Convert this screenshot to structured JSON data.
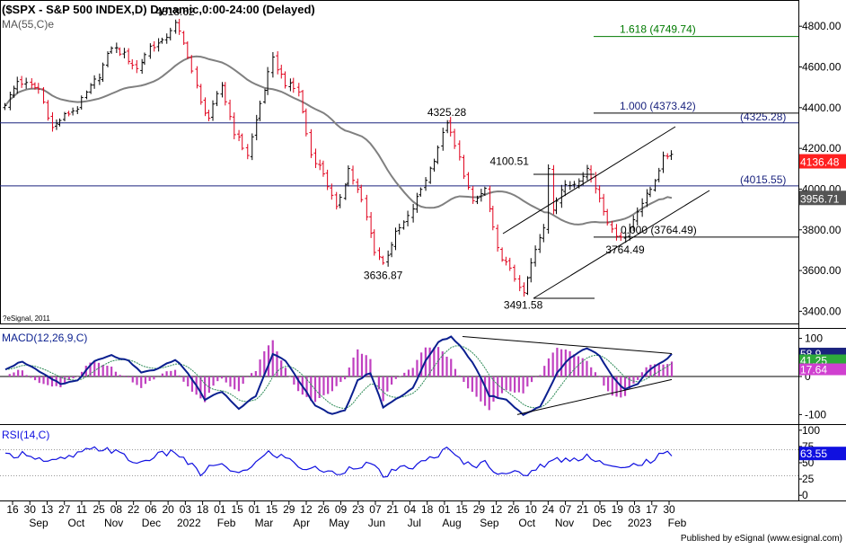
{
  "header": {
    "title": "($SPX - S&P 500 INDEX,D) Dynamic,0:00-24:00 (Delayed)",
    "ma_label": "MA(55,C)e",
    "copyright": "?eSignal, 2011",
    "footer": "Published by eSignal (www.esignal.com)"
  },
  "colors": {
    "up_bar": "#000000",
    "down_bar": "#e0001b",
    "ma": "#808080",
    "level_line": "#1a237e",
    "fib_161": "#007a00",
    "macd_line": "#0a1f8f",
    "signal_line": "#2e8b57",
    "histogram": "#c040c0",
    "rsi": "#1010e0",
    "price_tag": "#ff2020",
    "ma_tag": "#555555"
  },
  "chart_data": [
    {
      "type": "candlestick",
      "name": "price",
      "y_ticks": [
        "3400.00",
        "3600.00",
        "3800.00",
        "4000.00",
        "4200.00",
        "4400.00",
        "4600.00",
        "4800.00"
      ],
      "ylim": [
        3340,
        4920
      ],
      "path_keypoints": [
        {
          "t": 0,
          "v": 4420
        },
        {
          "t": 3,
          "v": 4530
        },
        {
          "t": 8,
          "v": 4490
        },
        {
          "t": 11,
          "v": 4300
        },
        {
          "t": 14,
          "v": 4360
        },
        {
          "t": 17,
          "v": 4400
        },
        {
          "t": 19,
          "v": 4470
        },
        {
          "t": 22,
          "v": 4560
        },
        {
          "t": 25,
          "v": 4700
        },
        {
          "t": 28,
          "v": 4660
        },
        {
          "t": 31,
          "v": 4590
        },
        {
          "t": 34,
          "v": 4700
        },
        {
          "t": 37,
          "v": 4720
        },
        {
          "t": 40,
          "v": 4818.62
        },
        {
          "t": 43,
          "v": 4660
        },
        {
          "t": 46,
          "v": 4420
        },
        {
          "t": 48,
          "v": 4350
        },
        {
          "t": 51,
          "v": 4510
        },
        {
          "t": 54,
          "v": 4280
        },
        {
          "t": 57,
          "v": 4170
        },
        {
          "t": 60,
          "v": 4420
        },
        {
          "t": 63,
          "v": 4635
        },
        {
          "t": 66,
          "v": 4520
        },
        {
          "t": 69,
          "v": 4480
        },
        {
          "t": 72,
          "v": 4170
        },
        {
          "t": 75,
          "v": 4080
        },
        {
          "t": 78,
          "v": 3900
        },
        {
          "t": 81,
          "v": 4100
        },
        {
          "t": 84,
          "v": 3940
        },
        {
          "t": 87,
          "v": 3700
        },
        {
          "t": 89,
          "v": 3636.87
        },
        {
          "t": 92,
          "v": 3780
        },
        {
          "t": 95,
          "v": 3860
        },
        {
          "t": 98,
          "v": 4000
        },
        {
          "t": 101,
          "v": 4150
        },
        {
          "t": 104,
          "v": 4325.28
        },
        {
          "t": 107,
          "v": 4150
        },
        {
          "t": 110,
          "v": 3930
        },
        {
          "t": 113,
          "v": 4000
        },
        {
          "t": 116,
          "v": 3700
        },
        {
          "t": 119,
          "v": 3600
        },
        {
          "t": 122,
          "v": 3491.58
        },
        {
          "t": 125,
          "v": 3700
        },
        {
          "t": 128,
          "v": 3860
        },
        {
          "t": 131,
          "v": 4000
        },
        {
          "t": 134,
          "v": 4030
        },
        {
          "t": 137,
          "v": 4100.51
        },
        {
          "t": 140,
          "v": 3960
        },
        {
          "t": 143,
          "v": 3790
        },
        {
          "t": 146,
          "v": 3764.49
        },
        {
          "t": 149,
          "v": 3900
        },
        {
          "t": 152,
          "v": 4000
        },
        {
          "t": 155,
          "v": 4150
        },
        {
          "t": 157,
          "v": 4180
        }
      ],
      "annotations": [
        {
          "label": "4818.62",
          "t": 40,
          "v": 4818.62,
          "pos": "above"
        },
        {
          "label": "4325.28",
          "t": 104,
          "v": 4325.28,
          "pos": "above"
        },
        {
          "label": "3636.87",
          "t": 89,
          "v": 3636.87,
          "pos": "below"
        },
        {
          "label": "3491.58",
          "t": 122,
          "v": 3491.58,
          "pos": "below"
        },
        {
          "label": "4100.51",
          "t": 128,
          "v": 4100.51,
          "pos": "left"
        },
        {
          "label": "3764.49",
          "t": 146,
          "v": 3764.49,
          "pos": "below"
        }
      ],
      "level_lines": [
        {
          "label": "(4325.28)",
          "value": 4325.28,
          "style": "full"
        },
        {
          "label": "(4015.55)",
          "value": 4015.55,
          "style": "full"
        },
        {
          "label": "1.618 (4749.74)",
          "value": 4749.74,
          "style": "partial"
        },
        {
          "label": "1.000 (4373.42)",
          "value": 4373.42,
          "style": "partial"
        },
        {
          "label": "0.000 (3764.49)",
          "value": 3764.49,
          "style": "partial"
        }
      ],
      "last_price": "4136.48",
      "ma_value": "3956.71"
    },
    {
      "type": "line",
      "name": "MACD(12,26,9,C)",
      "label": "MACD(12,26,9,C)",
      "y_ticks": [
        "100",
        "0",
        "-100"
      ],
      "ylim": [
        -125,
        125
      ],
      "macd_keypoints": [
        {
          "t": 0,
          "v": 20
        },
        {
          "t": 4,
          "v": 40
        },
        {
          "t": 9,
          "v": 5
        },
        {
          "t": 13,
          "v": -20
        },
        {
          "t": 17,
          "v": -10
        },
        {
          "t": 21,
          "v": 40
        },
        {
          "t": 25,
          "v": 55
        },
        {
          "t": 29,
          "v": 40
        },
        {
          "t": 32,
          "v": 10
        },
        {
          "t": 36,
          "v": 20
        },
        {
          "t": 40,
          "v": 45
        },
        {
          "t": 43,
          "v": 10
        },
        {
          "t": 47,
          "v": -60
        },
        {
          "t": 51,
          "v": -40
        },
        {
          "t": 55,
          "v": -85
        },
        {
          "t": 59,
          "v": -50
        },
        {
          "t": 63,
          "v": 60
        },
        {
          "t": 66,
          "v": 40
        },
        {
          "t": 69,
          "v": -10
        },
        {
          "t": 73,
          "v": -75
        },
        {
          "t": 77,
          "v": -100
        },
        {
          "t": 80,
          "v": -90
        },
        {
          "t": 83,
          "v": -10
        },
        {
          "t": 86,
          "v": 10
        },
        {
          "t": 89,
          "v": -80
        },
        {
          "t": 92,
          "v": -60
        },
        {
          "t": 96,
          "v": -30
        },
        {
          "t": 99,
          "v": 40
        },
        {
          "t": 102,
          "v": 90
        },
        {
          "t": 105,
          "v": 105
        },
        {
          "t": 108,
          "v": 70
        },
        {
          "t": 111,
          "v": 20
        },
        {
          "t": 114,
          "v": -50
        },
        {
          "t": 118,
          "v": -60
        },
        {
          "t": 122,
          "v": -100
        },
        {
          "t": 126,
          "v": -80
        },
        {
          "t": 130,
          "v": 10
        },
        {
          "t": 133,
          "v": 50
        },
        {
          "t": 137,
          "v": 75
        },
        {
          "t": 140,
          "v": 55
        },
        {
          "t": 143,
          "v": 0
        },
        {
          "t": 146,
          "v": -35
        },
        {
          "t": 149,
          "v": -20
        },
        {
          "t": 152,
          "v": 20
        },
        {
          "t": 155,
          "v": 40
        },
        {
          "t": 157,
          "v": 58
        }
      ],
      "tags": [
        {
          "label": "58.9",
          "value": 58.9
        },
        {
          "label": "41.25",
          "value": 41.25
        },
        {
          "label": "17.64",
          "value": 17.64
        }
      ]
    },
    {
      "type": "line",
      "name": "RSI(14,C)",
      "label": "RSI(14,C)",
      "y_ticks": [
        "100",
        "75",
        "50",
        "25",
        "0"
      ],
      "ylim": [
        -8,
        108
      ],
      "keypoints": [
        {
          "t": 0,
          "v": 60
        },
        {
          "t": 5,
          "v": 65
        },
        {
          "t": 10,
          "v": 50
        },
        {
          "t": 15,
          "v": 58
        },
        {
          "t": 20,
          "v": 70
        },
        {
          "t": 24,
          "v": 72
        },
        {
          "t": 28,
          "v": 60
        },
        {
          "t": 31,
          "v": 48
        },
        {
          "t": 35,
          "v": 60
        },
        {
          "t": 40,
          "v": 67
        },
        {
          "t": 43,
          "v": 50
        },
        {
          "t": 46,
          "v": 33
        },
        {
          "t": 50,
          "v": 50
        },
        {
          "t": 54,
          "v": 32
        },
        {
          "t": 58,
          "v": 45
        },
        {
          "t": 62,
          "v": 65
        },
        {
          "t": 66,
          "v": 58
        },
        {
          "t": 70,
          "v": 42
        },
        {
          "t": 74,
          "v": 40
        },
        {
          "t": 78,
          "v": 32
        },
        {
          "t": 82,
          "v": 45
        },
        {
          "t": 86,
          "v": 48
        },
        {
          "t": 89,
          "v": 30
        },
        {
          "t": 93,
          "v": 40
        },
        {
          "t": 97,
          "v": 46
        },
        {
          "t": 101,
          "v": 60
        },
        {
          "t": 104,
          "v": 70
        },
        {
          "t": 107,
          "v": 55
        },
        {
          "t": 110,
          "v": 45
        },
        {
          "t": 113,
          "v": 50
        },
        {
          "t": 116,
          "v": 36
        },
        {
          "t": 120,
          "v": 34
        },
        {
          "t": 122,
          "v": 30
        },
        {
          "t": 126,
          "v": 45
        },
        {
          "t": 130,
          "v": 55
        },
        {
          "t": 134,
          "v": 55
        },
        {
          "t": 137,
          "v": 62
        },
        {
          "t": 140,
          "v": 52
        },
        {
          "t": 143,
          "v": 42
        },
        {
          "t": 146,
          "v": 40
        },
        {
          "t": 149,
          "v": 50
        },
        {
          "t": 152,
          "v": 52
        },
        {
          "t": 155,
          "v": 63.55
        },
        {
          "t": 157,
          "v": 63.55
        }
      ],
      "tags": [
        {
          "label": "63.55",
          "value": 63.55
        }
      ]
    }
  ],
  "x_axis": {
    "day_ticks": [
      "16",
      "30",
      "13",
      "27",
      "11",
      "25",
      "08",
      "22",
      "06",
      "20",
      "03",
      "18",
      "01",
      "15",
      "01",
      "15",
      "29",
      "12",
      "26",
      "09",
      "23",
      "07",
      "21",
      "04",
      "18",
      "01",
      "15",
      "29",
      "12",
      "26",
      "10",
      "24",
      "07",
      "21",
      "05",
      "19",
      "03",
      "17",
      "30"
    ],
    "months": [
      "Sep",
      "Oct",
      "Nov",
      "Dec",
      "2022",
      "Feb",
      "Mar",
      "Apr",
      "May",
      "Jun",
      "Jul",
      "Aug",
      "Sep",
      "Oct",
      "Nov",
      "Dec",
      "2023",
      "Feb"
    ]
  }
}
